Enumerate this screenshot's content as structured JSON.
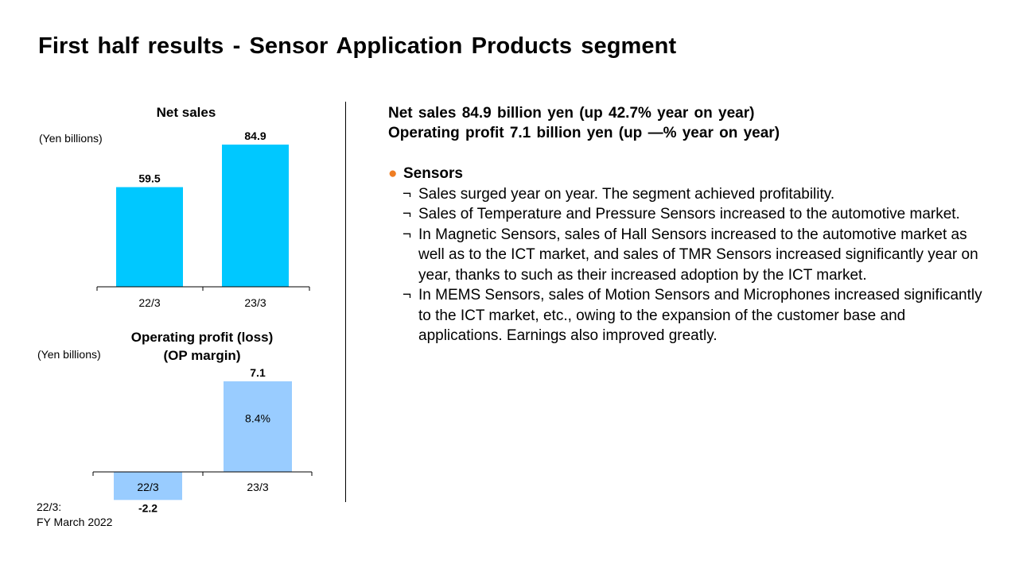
{
  "title": "First half results - Sensor Application Products segment",
  "chart_data": [
    {
      "type": "bar",
      "title": "Net sales",
      "ylabel": "(Yen billions)",
      "categories": [
        "22/3",
        "23/3"
      ],
      "values": [
        59.5,
        84.9
      ],
      "value_labels": [
        "59.5",
        "84.9"
      ],
      "ylim": [
        0,
        90
      ],
      "color": "#00c8ff"
    },
    {
      "type": "bar",
      "title": "Operating profit (loss)",
      "subtitle": "(OP margin)",
      "ylabel": "(Yen billions)",
      "categories": [
        "22/3",
        "23/3"
      ],
      "values": [
        -2.2,
        7.1
      ],
      "value_labels": [
        "-2.2",
        "7.1"
      ],
      "margin_labels": [
        "",
        "8.4%"
      ],
      "ylim": [
        -2.4,
        7.6
      ],
      "color": "#99ccff"
    }
  ],
  "footnote": {
    "line1": "22/3:",
    "line2": "FY March 2022"
  },
  "summary": {
    "line1": "Net sales  84.9 billion yen (up 42.7% year on year)",
    "line2": "Operating profit  7.1 billion yen (up —% year on year)"
  },
  "sensors": {
    "bullet": "●",
    "mark": "¬",
    "heading": "Sensors",
    "points": [
      "Sales surged year on year. The segment achieved profitability.",
      "Sales of Temperature and Pressure Sensors increased to the automotive market.",
      "In Magnetic Sensors, sales of Hall Sensors increased to the automotive market as well as to the ICT market, and sales of TMR Sensors increased significantly year on year, thanks to such as their increased adoption by the ICT market.",
      "In MEMS Sensors, sales of Motion Sensors and Microphones increased significantly to the ICT market, etc., owing to the expansion of the customer base and applications. Earnings also improved greatly."
    ]
  }
}
